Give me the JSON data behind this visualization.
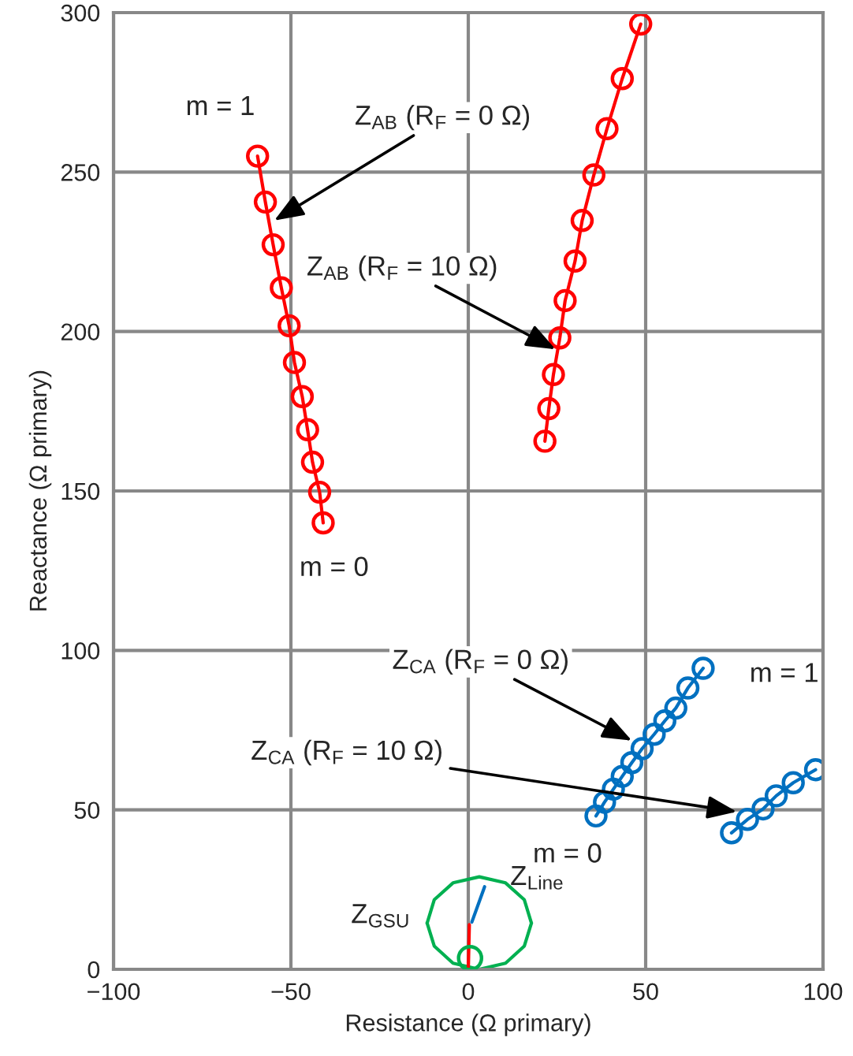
{
  "chart_data": {
    "type": "line",
    "xlabel": "Resistance (Ω primary)",
    "ylabel": "Reactance (Ω primary)",
    "xlim": [
      -100,
      100
    ],
    "ylim": [
      0,
      300
    ],
    "xticks": [
      {
        "value": -100,
        "label": "−100"
      },
      {
        "value": -50,
        "label": "−50"
      },
      0,
      50,
      100
    ],
    "yticks": [
      0,
      50,
      100,
      150,
      200,
      250,
      300
    ],
    "grid": true,
    "marker": "circle",
    "line_style": "solid",
    "series": [
      {
        "color": "#ff0000",
        "x": [
          -59.4,
          -57.2,
          -55.0,
          -52.7,
          -50.5,
          -49.0,
          -46.8,
          -45.3,
          -43.9,
          -41.9,
          -40.9
        ],
        "values": [
          255,
          240.6,
          227.2,
          213.7,
          201.8,
          190.3,
          179.6,
          169.2,
          159.0,
          149.6,
          140.0
        ]
      },
      {
        "color": "#ff0000",
        "x": [
          21.6,
          22.7,
          24.0,
          25.8,
          27.3,
          30.1,
          32.1,
          35.4,
          39.1,
          43.4,
          48.6
        ],
        "values": [
          165.6,
          175.8,
          186.5,
          198.0,
          209.7,
          222.1,
          234.8,
          249.1,
          263.6,
          279.3,
          296.4
        ]
      },
      {
        "color": "#0070c0",
        "x": [
          36.0,
          38.4,
          40.9,
          43.4,
          46.1,
          49.0,
          52.4,
          55.4,
          58.5,
          61.9,
          66.2
        ],
        "values": [
          48.1,
          52.4,
          56.5,
          60.5,
          64.8,
          69.2,
          73.7,
          77.9,
          81.9,
          88.2,
          94.4
        ]
      },
      {
        "color": "#0070c0",
        "x": [
          74.2,
          78.7,
          83.1,
          86.8,
          91.6,
          97.9
        ],
        "values": [
          42.8,
          47.0,
          50.3,
          54.4,
          58.5,
          62.6
        ]
      },
      {
        "color": "#00b050",
        "marker": "none",
        "x": [
          17.8,
          15.8,
          10.5,
          3.1,
          -4.3,
          -9.6,
          -11.6
        ],
        "values": [
          14.5,
          21.8,
          27.1,
          29,
          27.1,
          21.8,
          14.5
        ]
      },
      {
        "color": "#00b050",
        "marker": "none",
        "x": [
          -11.6,
          -9.6,
          -4.3,
          3.1,
          10.5,
          15.8,
          17.8
        ],
        "values": [
          14.5,
          7.3,
          1.9,
          0,
          1.9,
          7.3,
          14.5
        ]
      },
      {
        "type": "scatter",
        "color": "#00b050",
        "x": [
          0.5
        ],
        "values": [
          3.5
        ]
      },
      {
        "color": "#ff0000",
        "marker": "none",
        "x": [
          0,
          0.3
        ],
        "values": [
          0,
          14
        ]
      },
      {
        "color": "#0070c0",
        "marker": "none",
        "x": [
          1,
          4.6
        ],
        "values": [
          14.8,
          25.9
        ]
      }
    ],
    "annotations": [
      {
        "text": "Z$_{AB}$ (R$_{F}$ = 0 Ω)",
        "x": -54.7,
        "y": 234.8
      },
      {
        "text": "Z$_{AB}$ (R$_{F}$ = 10 Ω)",
        "x": 24.6,
        "y": 194.4
      },
      {
        "text": "Z$_{CA}$ (R$_{F}$ = 0 Ω)",
        "x": 46.1,
        "y": 71.7
      },
      {
        "text": "Z$_{CA}$ (R$_{F}$ = 10 Ω)",
        "x": 75.7,
        "y": 49.4
      },
      {
        "text": "m = 1",
        "x": -59.4,
        "y": 255
      },
      {
        "text": "m = 0",
        "x": -40.9,
        "y": 140.0
      },
      {
        "text": "m = 1",
        "x": 66.2,
        "y": 94.4
      },
      {
        "text": "m = 0",
        "x": 36.0,
        "y": 48.1
      },
      {
        "text": "Z$_{GSU}$",
        "x": 0,
        "y": 14
      },
      {
        "text": "Z$_{Line}$",
        "x": 4.6,
        "y": 25.9
      }
    ]
  }
}
